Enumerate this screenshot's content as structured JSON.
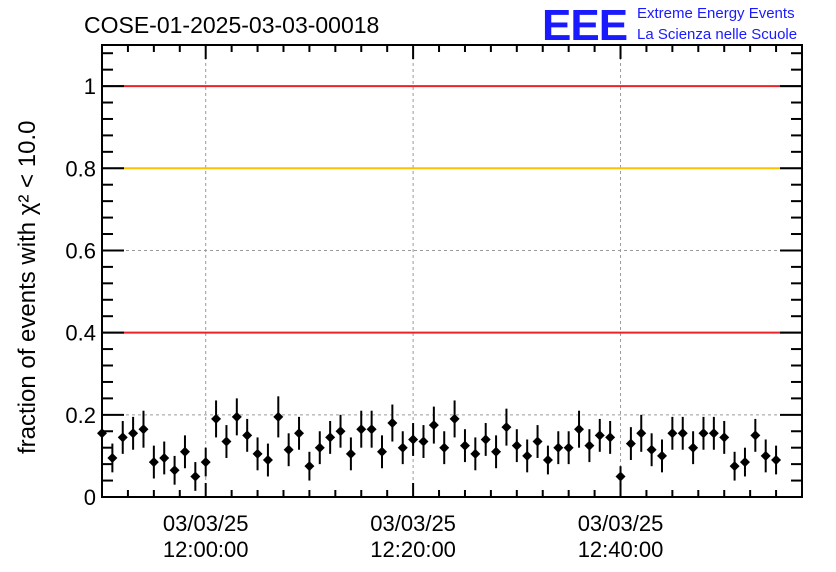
{
  "chart_data": {
    "type": "scatter",
    "title": "COSE-01-2025-03-03-00018",
    "ylabel": "fraction of events with χ² < 10.0",
    "xlabel": "",
    "ylim": [
      0,
      1.1
    ],
    "y_ticks": [
      "0",
      "0.2",
      "0.4",
      "0.6",
      "0.8",
      "1"
    ],
    "x_ticks": [
      {
        "date": "03/03/25",
        "time": "12:00:00"
      },
      {
        "date": "03/03/25",
        "time": "12:20:00"
      },
      {
        "date": "03/03/25",
        "time": "12:40:00"
      }
    ],
    "x_range": [
      "11:50:00",
      "12:57:30"
    ],
    "grid": true,
    "reference_lines": [
      {
        "y": 1.0,
        "color": "#e8232a"
      },
      {
        "y": 0.8,
        "color": "#ffc000"
      },
      {
        "y": 0.4,
        "color": "#e8232a"
      }
    ],
    "series": [
      {
        "color": "#000000",
        "marker": "diamond",
        "x_start": "11:50:00",
        "x_step_seconds": 60,
        "values": [
          0.155,
          0.095,
          0.145,
          0.155,
          0.165,
          0.085,
          0.095,
          0.065,
          0.11,
          0.05,
          0.085,
          0.19,
          0.135,
          0.195,
          0.15,
          0.105,
          0.09,
          0.195,
          0.115,
          0.155,
          0.075,
          0.12,
          0.145,
          0.16,
          0.105,
          0.165,
          0.165,
          0.11,
          0.18,
          0.12,
          0.14,
          0.135,
          0.175,
          0.12,
          0.19,
          0.125,
          0.105,
          0.14,
          0.11,
          0.17,
          0.125,
          0.1,
          0.135,
          0.09,
          0.12,
          0.12,
          0.165,
          0.125,
          0.15,
          0.145,
          0.05,
          0.13,
          0.155,
          0.115,
          0.1,
          0.155,
          0.155,
          0.12,
          0.155,
          0.155,
          0.145,
          0.075,
          0.085,
          0.15,
          0.1,
          0.09
        ],
        "errors": [
          0.035,
          0.035,
          0.04,
          0.04,
          0.045,
          0.04,
          0.04,
          0.035,
          0.04,
          0.035,
          0.035,
          0.045,
          0.04,
          0.045,
          0.04,
          0.04,
          0.04,
          0.05,
          0.04,
          0.04,
          0.035,
          0.04,
          0.04,
          0.04,
          0.04,
          0.045,
          0.045,
          0.04,
          0.045,
          0.04,
          0.04,
          0.04,
          0.045,
          0.04,
          0.045,
          0.04,
          0.04,
          0.04,
          0.04,
          0.045,
          0.04,
          0.04,
          0.04,
          0.035,
          0.04,
          0.04,
          0.045,
          0.04,
          0.04,
          0.04,
          0.025,
          0.04,
          0.045,
          0.04,
          0.04,
          0.04,
          0.04,
          0.04,
          0.04,
          0.04,
          0.04,
          0.035,
          0.035,
          0.04,
          0.04,
          0.035
        ]
      }
    ]
  },
  "logo": {
    "mark": "EEE",
    "line1": "Extreme Energy Events",
    "line2": "La Scienza nelle Scuole"
  }
}
